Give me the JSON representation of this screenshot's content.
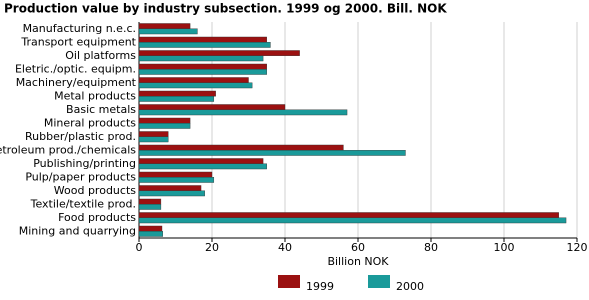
{
  "chart_data": {
    "type": "hbar",
    "title": "Production value by industry subsection. 1999 og 2000. Bill. NOK",
    "x_label": "Billion NOK",
    "categories": [
      "Manufacturing n.e.c.",
      "Transport equipment",
      "Oil platforms",
      "Eletric./optic. equipm.",
      "Machinery/equipment",
      "Metal products",
      "Basic metals",
      "Mineral products",
      "Rubber/plastic prod.",
      "Petroleum prod./chemicals",
      "Publishing/printing",
      "Pulp/paper products",
      "Wood products",
      "Textile/textile prod.",
      "Food products",
      "Mining and quarrying"
    ],
    "series": [
      {
        "name": "1999",
        "color": "#9b1111",
        "values": [
          14,
          35,
          44,
          35,
          30,
          21,
          40,
          14,
          8,
          56,
          34,
          20,
          17,
          6,
          115,
          6.3
        ]
      },
      {
        "name": "2000",
        "color": "#1a9a9a",
        "values": [
          16,
          36,
          34,
          35,
          31,
          20.5,
          57,
          14,
          8,
          73,
          35,
          20.5,
          18,
          6,
          117,
          6.5
        ]
      }
    ],
    "xlim": [
      0,
      120
    ],
    "xticks": [
      0,
      20,
      40,
      60,
      80,
      100,
      120
    ],
    "grid": true
  }
}
